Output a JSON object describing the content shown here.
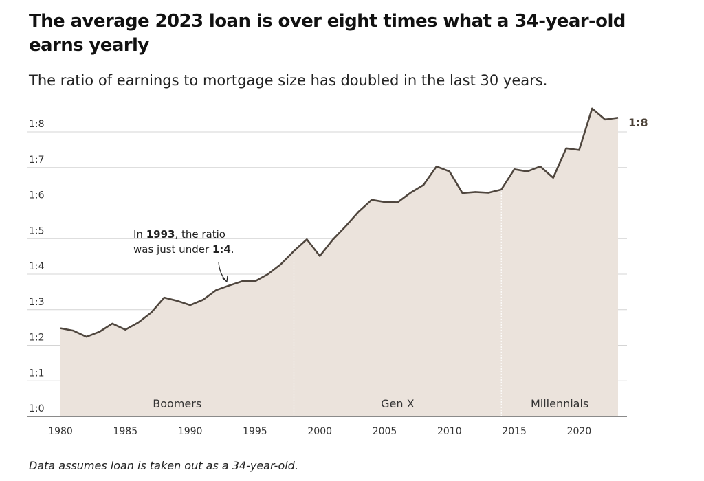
{
  "header": {
    "title": "The average 2023 loan is over eight times what a 34-year-old earns yearly",
    "subtitle": "The ratio of earnings to mortgage size has doubled in the last 30 years."
  },
  "footer": {
    "note": "Data assumes loan is taken out as a 34-year-old."
  },
  "colors": {
    "area_fill": "#ebe3dc",
    "line": "#4f463e",
    "grid": "#d4d4d4",
    "divider": "#ffffff"
  },
  "chart_data": {
    "type": "area",
    "title": "The average 2023 loan is over eight times what a 34-year-old earns yearly",
    "subtitle": "The ratio of earnings to mortgage size has doubled in the last 30 years.",
    "xlim": [
      1980,
      2023
    ],
    "ylim": [
      0,
      8.5
    ],
    "grid": true,
    "x_ticks": [
      1980,
      1985,
      1990,
      1995,
      2000,
      2005,
      2010,
      2015,
      2020
    ],
    "x_tick_labels": [
      "1980",
      "1985",
      "1990",
      "1995",
      "2000",
      "2005",
      "2010",
      "2015",
      "2020"
    ],
    "y_ticks": [
      0,
      1,
      2,
      3,
      4,
      5,
      6,
      7,
      8
    ],
    "y_tick_labels": [
      "1:0",
      "1:1",
      "1:2",
      "1:3",
      "1:4",
      "1:5",
      "1:6",
      "1:7",
      "1:8"
    ],
    "series": [
      {
        "x": [
          1980,
          1981,
          1982,
          1983,
          1984,
          1985,
          1986,
          1987,
          1988,
          1989,
          1990,
          1991,
          1992,
          1993,
          1994,
          1995,
          1996,
          1997,
          1998,
          1999,
          2000,
          2001,
          2002,
          2003,
          2004,
          2005,
          2006,
          2007,
          2008,
          2009,
          2010,
          2011,
          2012,
          2013,
          2014,
          2015,
          2016,
          2017,
          2018,
          2019,
          2020,
          2021,
          2022,
          2023
        ],
        "values": [
          2.48,
          2.41,
          2.24,
          2.38,
          2.61,
          2.44,
          2.64,
          2.92,
          3.34,
          3.25,
          3.13,
          3.28,
          3.55,
          3.68,
          3.8,
          3.8,
          4.0,
          4.28,
          4.65,
          4.98,
          4.51,
          4.97,
          5.35,
          5.76,
          6.09,
          6.03,
          6.02,
          6.29,
          6.51,
          7.03,
          6.89,
          6.28,
          6.31,
          6.29,
          6.38,
          6.95,
          6.89,
          7.03,
          6.71,
          7.54,
          7.49,
          8.66,
          8.35,
          8.4
        ]
      }
    ],
    "generations": [
      {
        "label": "Boomers",
        "from": 1980,
        "to": 1998
      },
      {
        "label": "Gen X",
        "from": 1998,
        "to": 2014
      },
      {
        "label": "Millennials",
        "from": 2014,
        "to": 2023
      }
    ],
    "end_label": "1:8",
    "annotation": {
      "line1_a": "In ",
      "line1_b": "1993",
      "line1_c": ", the ratio",
      "line2_a": "was just under ",
      "line2_b": "1:4",
      "line2_c": "."
    }
  }
}
